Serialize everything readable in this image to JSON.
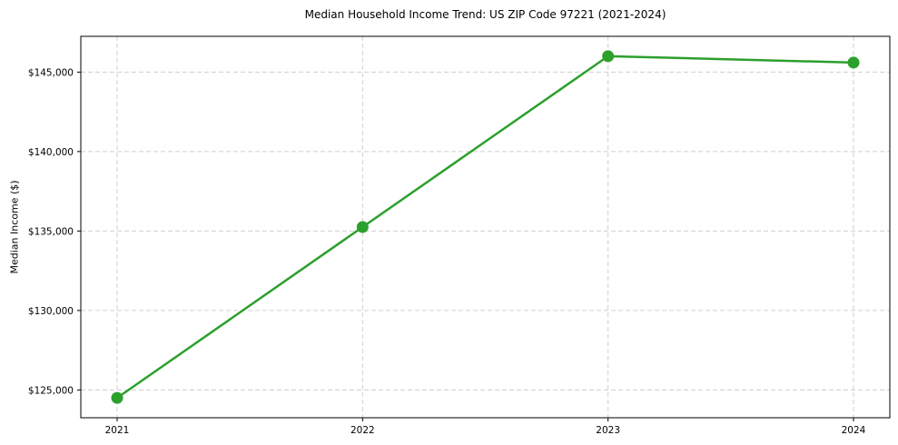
{
  "chart_data": {
    "type": "line",
    "title": "Median Household Income Trend: US ZIP Code 97221 (2021-2024)",
    "xlabel": "",
    "ylabel": "Median Income ($)",
    "categories": [
      "2021",
      "2022",
      "2023",
      "2024"
    ],
    "series": [
      {
        "name": "Median Household Income",
        "values": [
          124500,
          135250,
          146000,
          145600
        ]
      }
    ],
    "ylim": [
      123250,
      147250
    ],
    "yticks": [
      125000,
      130000,
      135000,
      140000,
      145000
    ],
    "ytick_labels": [
      "$125,000",
      "$130,000",
      "$135,000",
      "$140,000",
      "$145,000"
    ],
    "grid": true,
    "grid_style": "dashed",
    "legend_position": "none",
    "colors": {
      "line": "#2ca02c",
      "marker": "#2ca02c",
      "grid": "#cfcfcf",
      "spine": "#000000",
      "tick_text": "#000000",
      "background": "#ffffff"
    }
  }
}
